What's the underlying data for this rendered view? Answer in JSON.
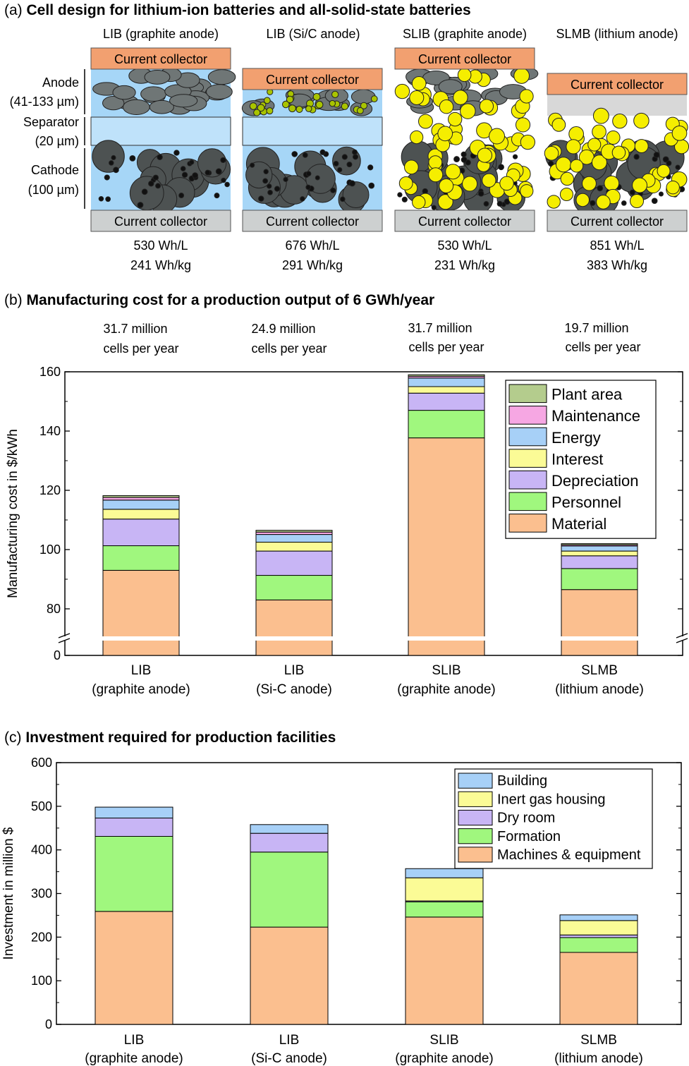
{
  "colors": {
    "material": "#fbbf8f",
    "personnel": "#a0f77e",
    "depreciation": "#c8b5f5",
    "interest": "#fbfb96",
    "energy": "#a7d0f7",
    "maintenance": "#f6a7e3",
    "plant_area": "#b4cc8d",
    "collector_anode": "#f2a070",
    "collector_cathode": "#cdd0d0",
    "electrolyte": "#a6d6f7",
    "separator": "#bfe2fa",
    "graphite": "#6f7676",
    "cathode_particle": "#4d5252",
    "solid_electrolyte": "#f5ee00",
    "silicon": "#a9c400"
  },
  "panel_a": {
    "title_prefix": "(a)",
    "title": "Cell design for lithium-ion batteries and all-solid-state batteries",
    "layer_labels": {
      "anode": "Anode",
      "anode_thickness": "(41-133 µm)",
      "separator": "Separator",
      "separator_thickness": "(20 µm)",
      "cathode": "Cathode",
      "cathode_thickness": "(100 µm)"
    },
    "cells": [
      {
        "name": "LIB (graphite anode)",
        "top_collector": "Current collector",
        "bottom_collector": "Current collector",
        "vol_density": "530 Wh/L",
        "grav_density": "241 Wh/kg"
      },
      {
        "name": "LIB (Si/C anode)",
        "top_collector": "Current collector",
        "bottom_collector": "Current collector",
        "vol_density": "676 Wh/L",
        "grav_density": "291 Wh/kg"
      },
      {
        "name": "SLIB (graphite anode)",
        "top_collector": "Current collector",
        "bottom_collector": "Current collector",
        "vol_density": "530 Wh/L",
        "grav_density": "231 Wh/kg"
      },
      {
        "name": "SLMB (lithium anode)",
        "top_collector": "Current collector",
        "bottom_collector": "Current collector",
        "vol_density": "851 Wh/L",
        "grav_density": "383 Wh/kg"
      }
    ]
  },
  "panel_b": {
    "title_prefix": "(b)",
    "title": "Manufacturing cost for a production output of 6 GWh/year",
    "cells_per_year": [
      {
        "count": "31.7 million",
        "unit": "cells per year"
      },
      {
        "count": "24.9 million",
        "unit": "cells per year"
      },
      {
        "count": "31.7 million",
        "unit": "cells per year"
      },
      {
        "count": "19.7 million",
        "unit": "cells per year"
      }
    ]
  },
  "panel_c": {
    "title_prefix": "(c)",
    "title": "Investment required for production facilities"
  },
  "chart_data": [
    {
      "type": "bar",
      "stacked": true,
      "ylabel": "Manufacturing cost in $/kWh",
      "yticks": [
        0,
        80,
        100,
        120,
        140,
        160
      ],
      "ylim": [
        70,
        160
      ],
      "axis_break": true,
      "categories": [
        {
          "line1": "LIB",
          "line2": "(graphite anode)"
        },
        {
          "line1": "LIB",
          "line2": "(Si-C anode)"
        },
        {
          "line1": "SLIB",
          "line2": "(graphite anode)"
        },
        {
          "line1": "SLMB",
          "line2": "(lithium anode)"
        }
      ],
      "legend_position": "top-right",
      "series": [
        {
          "name": "Material",
          "color": "#fbbf8f",
          "values": [
            93.0,
            83.0,
            137.7,
            86.5
          ]
        },
        {
          "name": "Personnel",
          "color": "#a0f77e",
          "values": [
            8.3,
            8.3,
            9.3,
            7.1
          ]
        },
        {
          "name": "Depreciation",
          "color": "#c8b5f5",
          "values": [
            9.0,
            8.2,
            5.8,
            4.3
          ]
        },
        {
          "name": "Interest",
          "color": "#fbfb96",
          "values": [
            3.3,
            3.0,
            2.2,
            1.6
          ]
        },
        {
          "name": "Energy",
          "color": "#a7d0f7",
          "values": [
            3.1,
            2.6,
            2.9,
            1.7
          ]
        },
        {
          "name": "Maintenance",
          "color": "#f6a7e3",
          "values": [
            0.9,
            0.8,
            0.6,
            0.4
          ]
        },
        {
          "name": "Plant area",
          "color": "#b4cc8d",
          "values": [
            0.6,
            0.6,
            0.5,
            0.4
          ]
        }
      ]
    },
    {
      "type": "bar",
      "stacked": true,
      "ylabel": "Investment in million $",
      "yticks": [
        0,
        100,
        200,
        300,
        400,
        500,
        600
      ],
      "ylim": [
        0,
        600
      ],
      "categories": [
        {
          "line1": "LIB",
          "line2": "(graphite anode)"
        },
        {
          "line1": "LIB",
          "line2": "(Si-C anode)"
        },
        {
          "line1": "SLIB",
          "line2": "(graphite anode)"
        },
        {
          "line1": "SLMB",
          "line2": "(lithium anode)"
        }
      ],
      "legend_position": "top-right",
      "series": [
        {
          "name": "Machines & equipment",
          "color": "#fbbf8f",
          "values": [
            259,
            223,
            246,
            165
          ]
        },
        {
          "name": "Formation",
          "color": "#a0f77e",
          "values": [
            172,
            172,
            35,
            34
          ]
        },
        {
          "name": "Dry room",
          "color": "#c8b5f5",
          "values": [
            42,
            43,
            2,
            6
          ]
        },
        {
          "name": "Inert gas housing",
          "color": "#fbfb96",
          "values": [
            0,
            0,
            53,
            33
          ]
        },
        {
          "name": "Building",
          "color": "#a7d0f7",
          "values": [
            25,
            20,
            21,
            13
          ]
        }
      ]
    }
  ]
}
